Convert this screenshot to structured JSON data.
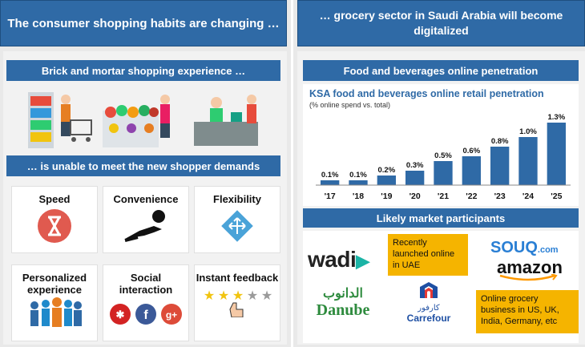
{
  "left": {
    "title": "The consumer shopping habits are changing …",
    "brick_header": "Brick and mortar shopping experience …",
    "unable_header": "… is unable to meet the new shopper demands",
    "tiles": [
      {
        "label": "Speed",
        "icon": "hourglass-icon"
      },
      {
        "label": "Convenience",
        "icon": "relaxing-person-icon"
      },
      {
        "label": "Flexibility",
        "icon": "direction-arrows-icon"
      },
      {
        "label": "Personalized experience",
        "icon": "group-people-icon"
      },
      {
        "label": "Social interaction",
        "icon": "social-media-icon"
      },
      {
        "label": "Instant feedback",
        "icon": "star-rating-icon"
      }
    ]
  },
  "right": {
    "title": "… grocery sector in Saudi Arabia will become digitalized",
    "food_header": "Food and beverages online penetration",
    "market_header": "Likely market participants",
    "logos": {
      "wadi": "wadi",
      "danube": "Danube",
      "danube_ar": "الدانوب",
      "carrefour": "Carrefour",
      "carrefour_ar": "كارفور",
      "souq": "SOUQ",
      "souq_suffix": ".com",
      "amazon": "amazon"
    },
    "note_uae": "Recently launched online in UAE",
    "note_amazon": "Online grocery business in US, UK, India, Germany, etc"
  },
  "chart_data": {
    "type": "bar",
    "title": "KSA food and beverages online retail penetration",
    "subtitle": "(% online spend vs. total)",
    "categories": [
      "'17",
      "'18",
      "'19",
      "'20",
      "'21",
      "'22",
      "'23",
      "'24",
      "'25"
    ],
    "values": [
      0.1,
      0.1,
      0.2,
      0.3,
      0.5,
      0.6,
      0.8,
      1.0,
      1.3
    ],
    "labels": [
      "0.1%",
      "0.1%",
      "0.2%",
      "0.3%",
      "0.5%",
      "0.6%",
      "0.8%",
      "1.0%",
      "1.3%"
    ],
    "ylim": [
      0,
      1.4
    ],
    "color": "#2f6aa6",
    "grid": false
  }
}
